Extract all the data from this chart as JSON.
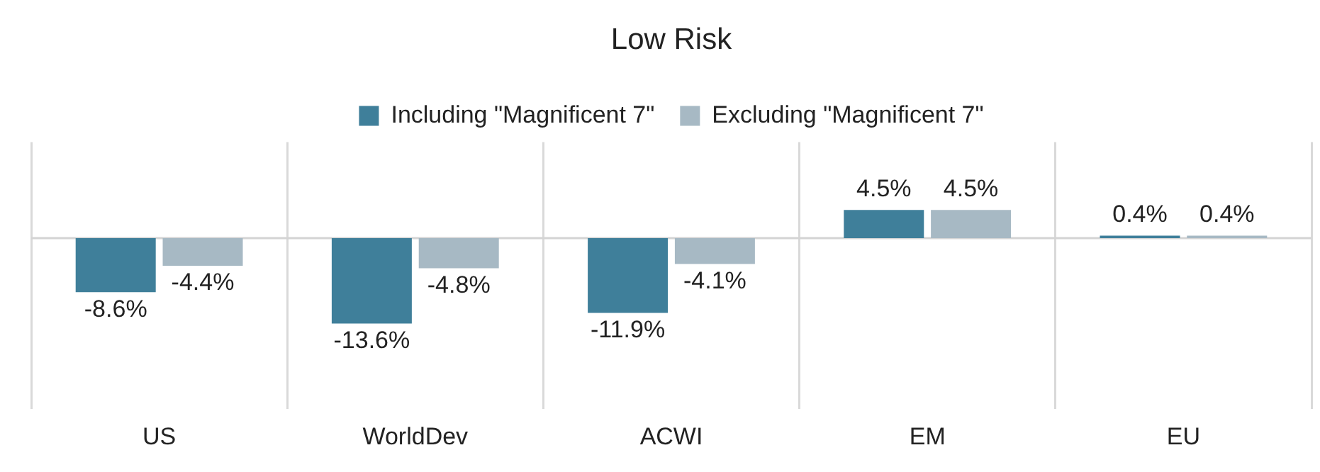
{
  "chart_data": {
    "type": "bar",
    "title": "Low Risk",
    "tick_labels": "x",
    "categories": [
      "US",
      "WorldDev",
      "ACWI",
      "EM",
      "EU"
    ],
    "series": [
      {
        "name": "Including \"Magnificent 7\"",
        "color": "#3f7f9a",
        "values": [
          -8.6,
          -13.6,
          -11.9,
          4.5,
          0.4
        ],
        "value_labels": [
          "-8.6%",
          "-13.6%",
          "-11.9%",
          "4.5%",
          "0.4%"
        ]
      },
      {
        "name": "Excluding \"Magnificent 7\"",
        "color": "#a7b9c4",
        "values": [
          -4.4,
          -4.8,
          -4.1,
          4.5,
          0.4
        ],
        "value_labels": [
          "-4.4%",
          "-4.8%",
          "-4.1%",
          "4.5%",
          "0.4%"
        ]
      }
    ],
    "legend": "top",
    "grid": "x"
  }
}
